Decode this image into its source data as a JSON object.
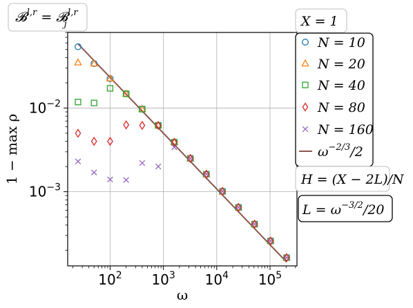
{
  "chart_data": {
    "type": "scatter",
    "title": "",
    "xlabel": "ω",
    "ylabel": "1 − max ρ",
    "xscale": "log",
    "yscale": "log",
    "xlim": [
      16,
      320000
    ],
    "ylim": [
      0.00013,
      0.08
    ],
    "xticks": [
      {
        "value": 100,
        "base": "10",
        "exp": "2"
      },
      {
        "value": 1000,
        "base": "10",
        "exp": "3"
      },
      {
        "value": 10000,
        "base": "10",
        "exp": "4"
      },
      {
        "value": 100000,
        "base": "10",
        "exp": "5"
      }
    ],
    "yticks": [
      {
        "value": 0.01,
        "base": "10",
        "exp": "−2"
      },
      {
        "value": 0.001,
        "base": "10",
        "exp": "−3"
      }
    ],
    "grid": true,
    "annotations": {
      "top_left": "𝓑^{l,r} = 𝓑_j^{l,r}",
      "X": "X = 1",
      "H": "H = (X − 2L)/N",
      "L": "L = ω^{−3/2}/20"
    },
    "legend_placement": "right",
    "series": [
      {
        "name": "N = 10",
        "marker": "circle",
        "color": "#1f77b4",
        "x": [
          25,
          50,
          100,
          200,
          400,
          800,
          1600,
          3200,
          6400,
          12800,
          25600,
          51200,
          102400,
          204800
        ],
        "y": [
          0.054,
          0.034,
          0.0225,
          0.0148,
          0.0097,
          0.0062,
          0.0039,
          0.0025,
          0.00162,
          0.00101,
          0.00065,
          0.00041,
          0.000258,
          0.000163
        ]
      },
      {
        "name": "N = 20",
        "marker": "triangle",
        "color": "#ff7f0e",
        "x": [
          25,
          50,
          100,
          200,
          400,
          800,
          1600,
          3200,
          6400,
          12800,
          25600,
          51200,
          102400,
          204800
        ],
        "y": [
          0.035,
          0.034,
          0.0225,
          0.0148,
          0.0097,
          0.0062,
          0.0039,
          0.0025,
          0.00162,
          0.00101,
          0.00065,
          0.00041,
          0.000258,
          0.000163
        ]
      },
      {
        "name": "N = 40",
        "marker": "square",
        "color": "#2ca02c",
        "x": [
          25,
          50,
          100,
          200,
          400,
          800,
          1600,
          3200,
          6400,
          12800,
          25600,
          51200,
          102400,
          204800
        ],
        "y": [
          0.0118,
          0.0115,
          0.0172,
          0.0148,
          0.0097,
          0.0062,
          0.0039,
          0.0025,
          0.00162,
          0.00101,
          0.00065,
          0.00041,
          0.000258,
          0.000163
        ]
      },
      {
        "name": "N = 80",
        "marker": "diamond",
        "color": "#d62728",
        "x": [
          25,
          50,
          100,
          200,
          400,
          800,
          1600,
          3200,
          6400,
          12800,
          25600,
          51200,
          102400,
          204800
        ],
        "y": [
          0.005,
          0.004,
          0.004,
          0.0063,
          0.0062,
          0.0062,
          0.0039,
          0.0025,
          0.00162,
          0.00101,
          0.00065,
          0.00041,
          0.000258,
          0.000163
        ]
      },
      {
        "name": "N = 160",
        "marker": "x",
        "color": "#9467bd",
        "x": [
          25,
          50,
          100,
          200,
          400,
          800,
          1600,
          3200,
          6400,
          12800,
          25600,
          51200,
          102400,
          204800
        ],
        "y": [
          0.0023,
          0.0017,
          0.0014,
          0.00138,
          0.0022,
          0.002,
          0.0034,
          0.0025,
          0.00162,
          0.00101,
          0.00065,
          0.00041,
          0.000258,
          0.000163
        ]
      },
      {
        "name": "ω^{−2/3}/2",
        "marker": "line",
        "color": "#8c564b",
        "x": [
          25,
          204800
        ],
        "y": [
          0.0585,
          0.000144
        ]
      }
    ]
  }
}
